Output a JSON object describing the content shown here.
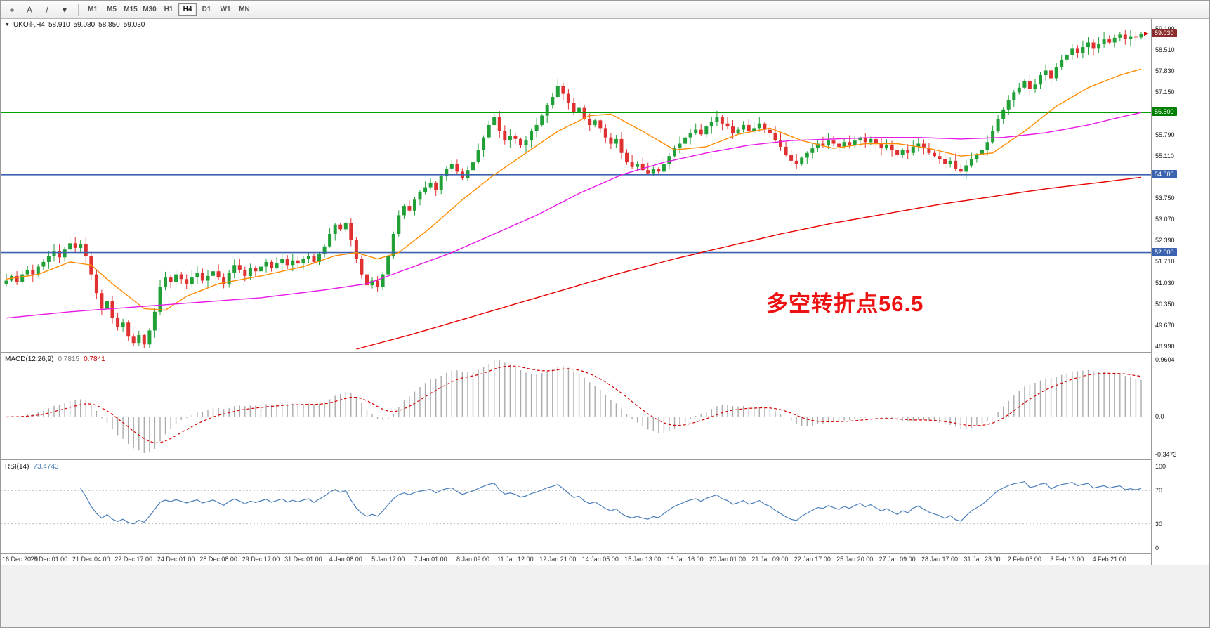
{
  "toolbar": {
    "tools": [
      {
        "name": "crosshair-tool",
        "glyph": "+"
      },
      {
        "name": "text-label-tool",
        "glyph": "A"
      },
      {
        "name": "trendline-tool",
        "glyph": "/"
      },
      {
        "name": "drawing-tools-dropdown",
        "glyph": "▾"
      }
    ],
    "timeframes": [
      {
        "label": "M1"
      },
      {
        "label": "M5"
      },
      {
        "label": "M15"
      },
      {
        "label": "M30"
      },
      {
        "label": "H1"
      },
      {
        "label": "H4",
        "selected": true
      },
      {
        "label": "D1"
      },
      {
        "label": "W1"
      },
      {
        "label": "MN"
      }
    ]
  },
  "icons": {
    "chart_dropdown": "▼"
  },
  "chart": {
    "title": {
      "symbol_period": "UKOil-,H4",
      "open": "58.910",
      "high": "59.080",
      "low": "58.850",
      "close": "59.030"
    },
    "annotation": {
      "text": "多空转折点56.5",
      "color": "#ee1111"
    }
  },
  "chart_data": {
    "type": "candlestick",
    "symbol": "UKOil-",
    "timeframe": "H4",
    "first_open": 51.0,
    "y_ticks": [
      "59.190",
      "58.510",
      "57.830",
      "57.150",
      "55.790",
      "55.110",
      "53.750",
      "53.070",
      "52.390",
      "51.710",
      "51.030",
      "50.350",
      "49.670",
      "48.990"
    ],
    "closes": [
      51.1,
      51.25,
      51.05,
      51.3,
      51.45,
      51.3,
      51.55,
      51.7,
      51.9,
      52.05,
      51.85,
      52.1,
      52.3,
      52.15,
      52.28,
      51.9,
      51.3,
      50.7,
      50.2,
      50.45,
      49.9,
      49.6,
      49.75,
      49.3,
      49.1,
      49.35,
      49.05,
      49.5,
      50.1,
      50.9,
      51.2,
      51.05,
      51.3,
      51.15,
      51.0,
      51.2,
      51.35,
      51.1,
      51.25,
      51.4,
      51.2,
      51.0,
      51.35,
      51.6,
      51.45,
      51.25,
      51.5,
      51.4,
      51.55,
      51.7,
      51.5,
      51.65,
      51.8,
      51.6,
      51.75,
      51.65,
      51.8,
      51.9,
      51.7,
      51.95,
      52.2,
      52.6,
      52.9,
      52.75,
      52.95,
      52.4,
      51.8,
      51.3,
      50.95,
      51.1,
      50.9,
      51.3,
      51.9,
      52.6,
      53.2,
      53.5,
      53.35,
      53.7,
      53.95,
      54.1,
      54.25,
      54.0,
      54.45,
      54.7,
      54.85,
      54.6,
      54.4,
      54.65,
      54.9,
      55.3,
      55.7,
      56.1,
      56.35,
      55.9,
      55.6,
      55.75,
      55.65,
      55.45,
      55.6,
      55.9,
      56.1,
      56.4,
      56.75,
      57.0,
      57.35,
      57.1,
      56.8,
      56.5,
      56.65,
      56.3,
      56.1,
      56.25,
      56.0,
      55.7,
      55.5,
      55.65,
      55.2,
      54.9,
      54.75,
      54.85,
      54.65,
      54.55,
      54.7,
      54.6,
      54.85,
      55.1,
      55.35,
      55.5,
      55.7,
      55.85,
      55.95,
      55.8,
      56.05,
      56.2,
      56.35,
      56.15,
      56.05,
      55.85,
      55.95,
      56.1,
      55.9,
      56.0,
      56.15,
      55.95,
      55.85,
      55.6,
      55.4,
      55.15,
      54.95,
      54.85,
      55.05,
      55.2,
      55.35,
      55.5,
      55.45,
      55.6,
      55.5,
      55.4,
      55.55,
      55.45,
      55.6,
      55.7,
      55.55,
      55.65,
      55.5,
      55.35,
      55.45,
      55.3,
      55.15,
      55.3,
      55.2,
      55.4,
      55.5,
      55.35,
      55.2,
      55.1,
      55.0,
      54.85,
      54.95,
      54.7,
      54.6,
      54.8,
      55.0,
      55.15,
      55.3,
      55.55,
      55.9,
      56.3,
      56.6,
      56.9,
      57.15,
      57.3,
      57.5,
      57.25,
      57.4,
      57.7,
      57.85,
      57.6,
      57.95,
      58.2,
      58.35,
      58.55,
      58.4,
      58.6,
      58.75,
      58.55,
      58.7,
      58.85,
      58.75,
      58.9,
      59.0,
      58.85,
      58.95,
      58.91,
      59.03
    ],
    "x_labels": [
      "16 Dec 2020",
      "18 Dec 01:00",
      "21 Dec 04:00",
      "22 Dec 17:00",
      "24 Dec 01:00",
      "28 Dec 08:00",
      "29 Dec 17:00",
      "31 Dec 01:00",
      "4 Jan 08:00",
      "5 Jan 17:00",
      "7 Jan 01:00",
      "8 Jan 09:00",
      "11 Jan 12:00",
      "12 Jan 21:00",
      "14 Jan 05:00",
      "15 Jan 13:00",
      "18 Jan 16:00",
      "20 Jan 01:00",
      "21 Jan 09:00",
      "22 Jan 17:00",
      "25 Jan 20:00",
      "27 Jan 09:00",
      "28 Jan 17:00",
      "31 Jan 23:00",
      "2 Feb 05:00",
      "3 Feb 13:00",
      "4 Feb 21:00"
    ],
    "hlines": [
      {
        "price": 56.5,
        "color": "#00a000",
        "label": "56.500",
        "badge_bg": "#008000"
      },
      {
        "price": 54.5,
        "color": "#3a62ae",
        "label": "54.500",
        "badge_bg": "#3a62ae"
      },
      {
        "price": 52.0,
        "color": "#3a62ae",
        "label": "52.000",
        "badge_bg": "#3a62ae"
      }
    ],
    "current_price": {
      "value": 59.03,
      "label": "59.030",
      "badge_bg": "#8c2b2b"
    },
    "ma_lines": [
      {
        "name": "ma-fast",
        "color": "#ff8c00",
        "points": [
          [
            0,
            51.15
          ],
          [
            6,
            51.3
          ],
          [
            12,
            51.7
          ],
          [
            16,
            51.6
          ],
          [
            20,
            51.0
          ],
          [
            26,
            50.2
          ],
          [
            30,
            50.15
          ],
          [
            34,
            50.6
          ],
          [
            40,
            51.0
          ],
          [
            48,
            51.25
          ],
          [
            56,
            51.55
          ],
          [
            62,
            51.9
          ],
          [
            66,
            52.0
          ],
          [
            70,
            51.8
          ],
          [
            74,
            52.0
          ],
          [
            80,
            52.8
          ],
          [
            86,
            53.7
          ],
          [
            92,
            54.5
          ],
          [
            98,
            55.2
          ],
          [
            104,
            55.9
          ],
          [
            110,
            56.4
          ],
          [
            114,
            56.45
          ],
          [
            120,
            55.9
          ],
          [
            126,
            55.3
          ],
          [
            132,
            55.4
          ],
          [
            138,
            55.8
          ],
          [
            144,
            56.0
          ],
          [
            150,
            55.6
          ],
          [
            156,
            55.35
          ],
          [
            162,
            55.5
          ],
          [
            168,
            55.5
          ],
          [
            174,
            55.35
          ],
          [
            180,
            55.1
          ],
          [
            186,
            55.2
          ],
          [
            192,
            55.9
          ],
          [
            198,
            56.7
          ],
          [
            204,
            57.3
          ],
          [
            210,
            57.7
          ],
          [
            214,
            57.9
          ]
        ]
      },
      {
        "name": "ma-medium",
        "color": "#e619e6",
        "points": [
          [
            0,
            49.9
          ],
          [
            12,
            50.1
          ],
          [
            24,
            50.25
          ],
          [
            36,
            50.4
          ],
          [
            48,
            50.55
          ],
          [
            60,
            50.8
          ],
          [
            68,
            51.0
          ],
          [
            76,
            51.5
          ],
          [
            84,
            52.0
          ],
          [
            92,
            52.6
          ],
          [
            100,
            53.2
          ],
          [
            108,
            53.9
          ],
          [
            116,
            54.5
          ],
          [
            124,
            54.9
          ],
          [
            132,
            55.2
          ],
          [
            140,
            55.45
          ],
          [
            148,
            55.6
          ],
          [
            156,
            55.65
          ],
          [
            164,
            55.7
          ],
          [
            172,
            55.7
          ],
          [
            180,
            55.65
          ],
          [
            188,
            55.7
          ],
          [
            196,
            55.85
          ],
          [
            204,
            56.1
          ],
          [
            210,
            56.35
          ],
          [
            214,
            56.5
          ]
        ]
      },
      {
        "name": "ma-slow",
        "color": "#e60000",
        "points": [
          [
            66,
            48.9
          ],
          [
            76,
            49.35
          ],
          [
            86,
            49.85
          ],
          [
            96,
            50.35
          ],
          [
            106,
            50.85
          ],
          [
            116,
            51.35
          ],
          [
            126,
            51.8
          ],
          [
            136,
            52.2
          ],
          [
            146,
            52.6
          ],
          [
            156,
            52.95
          ],
          [
            166,
            53.25
          ],
          [
            176,
            53.55
          ],
          [
            186,
            53.8
          ],
          [
            196,
            54.05
          ],
          [
            206,
            54.25
          ],
          [
            214,
            54.42
          ]
        ]
      }
    ],
    "colors": {
      "up": "#21a038",
      "down": "#e03131"
    },
    "indicators": {
      "macd": {
        "label": "MACD(12,26,9)",
        "params": [
          12,
          26,
          9
        ],
        "value_main": "0.7815",
        "value_signal": "0.7841",
        "scale_labels": [
          "0.9604",
          "0.0",
          "-0.3473"
        ],
        "hist_color": "#ababab",
        "signal_color": "#d40000"
      },
      "rsi": {
        "label": "RSI(14)",
        "period": 14,
        "value": "73.4743",
        "scale_labels": [
          "100",
          "70",
          "30",
          "0"
        ],
        "levels": [
          70,
          30
        ],
        "line_color": "#4a7ebb"
      }
    }
  }
}
